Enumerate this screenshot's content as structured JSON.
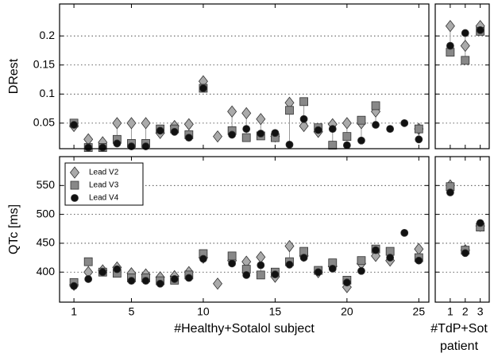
{
  "chart_data": [
    {
      "type": "scatter",
      "ylabel": "DRest",
      "show_xtick_labels": false,
      "show_ytick_labels": true,
      "legend": false,
      "grid": true,
      "xlim": [
        0,
        25.7
      ],
      "xticks": [
        1,
        5,
        10,
        15,
        20,
        25
      ],
      "ylim": [
        0.006,
        0.255
      ],
      "yticks": [
        0.05,
        0.1,
        0.15,
        0.2
      ],
      "x": [
        1,
        2,
        3,
        4,
        5,
        6,
        7,
        8,
        9,
        10,
        11,
        12,
        13,
        14,
        15,
        16,
        17,
        18,
        19,
        20,
        21,
        22,
        23,
        24,
        25
      ],
      "series": [
        {
          "name": "Lead V2",
          "color": "#aaaaaa",
          "marker": "diamond",
          "values": [
            0.045,
            0.022,
            0.017,
            0.05,
            0.05,
            0.05,
            0.033,
            0.045,
            0.048,
            0.122,
            0.027,
            0.07,
            0.067,
            0.057,
            0.027,
            0.085,
            0.045,
            0.035,
            0.048,
            0.05,
            0.05,
            0.07,
            null,
            null,
            0.04
          ]
        },
        {
          "name": "Lead V3",
          "color": "#888888",
          "marker": "square",
          "values": [
            0.05,
            0.008,
            0.008,
            0.022,
            0.015,
            0.015,
            0.04,
            0.04,
            0.03,
            0.11,
            null,
            0.037,
            0.025,
            0.028,
            0.025,
            0.072,
            0.087,
            0.042,
            0.012,
            0.027,
            0.055,
            0.08,
            null,
            null,
            0.04
          ]
        },
        {
          "name": "Lead V4",
          "color": "#111111",
          "marker": "circle",
          "values": [
            0.047,
            0.008,
            0.008,
            0.015,
            0.01,
            0.01,
            0.037,
            0.035,
            0.025,
            0.11,
            null,
            0.03,
            0.04,
            0.032,
            0.033,
            0.013,
            0.057,
            0.038,
            0.04,
            0.012,
            0.02,
            0.047,
            0.04,
            0.05,
            0.022
          ]
        }
      ]
    },
    {
      "type": "scatter",
      "show_xtick_labels": false,
      "show_ytick_labels": false,
      "legend": false,
      "grid": true,
      "xlim": [
        0,
        3.6
      ],
      "xticks": [
        1,
        2,
        3
      ],
      "ylim": [
        0.006,
        0.255
      ],
      "yticks": [
        0.05,
        0.1,
        0.15,
        0.2
      ],
      "x": [
        1,
        2,
        3
      ],
      "series": [
        {
          "name": "Lead V2",
          "color": "#aaaaaa",
          "marker": "diamond",
          "values": [
            0.217,
            0.183,
            0.217
          ]
        },
        {
          "name": "Lead V3",
          "color": "#888888",
          "marker": "square",
          "values": [
            0.172,
            0.158,
            0.208
          ]
        },
        {
          "name": "Lead V4",
          "color": "#111111",
          "marker": "circle",
          "values": [
            0.183,
            0.205,
            0.21
          ]
        }
      ]
    },
    {
      "type": "scatter",
      "ylabel": "QTc [ms]",
      "xlabel": "#Healthy+Sotalol subject",
      "show_xtick_labels": true,
      "show_ytick_labels": true,
      "legend": true,
      "legend_corner": "upper-left",
      "grid": true,
      "xlim": [
        0,
        25.7
      ],
      "xticks": [
        1,
        5,
        10,
        15,
        20,
        25
      ],
      "ylim": [
        348,
        600
      ],
      "yticks": [
        400,
        450,
        500,
        550
      ],
      "x": [
        1,
        2,
        3,
        4,
        5,
        6,
        7,
        8,
        9,
        10,
        11,
        12,
        13,
        14,
        15,
        16,
        17,
        18,
        19,
        20,
        21,
        22,
        23,
        24,
        25
      ],
      "series": [
        {
          "name": "Lead V2",
          "color": "#aaaaaa",
          "marker": "diamond",
          "values": [
            378,
            400,
            403,
            408,
            398,
            396,
            391,
            393,
            400,
            425,
            380,
            420,
            418,
            426,
            392,
            445,
            428,
            400,
            410,
            374,
            415,
            428,
            420,
            null,
            440
          ]
        },
        {
          "name": "Lead V3",
          "color": "#888888",
          "marker": "square",
          "values": [
            382,
            418,
            400,
            398,
            390,
            390,
            385,
            386,
            395,
            432,
            null,
            428,
            405,
            395,
            400,
            418,
            436,
            403,
            416,
            386,
            420,
            440,
            436,
            null,
            425
          ]
        },
        {
          "name": "Lead V4",
          "color": "#111111",
          "marker": "circle",
          "values": [
            376,
            388,
            400,
            405,
            385,
            385,
            380,
            388,
            390,
            423,
            null,
            415,
            395,
            412,
            396,
            413,
            425,
            400,
            406,
            382,
            402,
            438,
            425,
            468,
            420
          ]
        }
      ]
    },
    {
      "type": "scatter",
      "xlabel_lines": [
        "#TdP+Sot",
        "patient"
      ],
      "show_xtick_labels": true,
      "show_ytick_labels": false,
      "legend": false,
      "grid": true,
      "xlim": [
        0,
        3.6
      ],
      "xticks": [
        1,
        2,
        3
      ],
      "ylim": [
        348,
        600
      ],
      "yticks": [
        400,
        450,
        500,
        550
      ],
      "x": [
        1,
        2,
        3
      ],
      "series": [
        {
          "name": "Lead V2",
          "color": "#aaaaaa",
          "marker": "diamond",
          "values": [
            550,
            438,
            480
          ]
        },
        {
          "name": "Lead V3",
          "color": "#888888",
          "marker": "square",
          "values": [
            548,
            438,
            478
          ]
        },
        {
          "name": "Lead V4",
          "color": "#111111",
          "marker": "circle",
          "values": [
            538,
            433,
            485
          ]
        }
      ]
    }
  ]
}
